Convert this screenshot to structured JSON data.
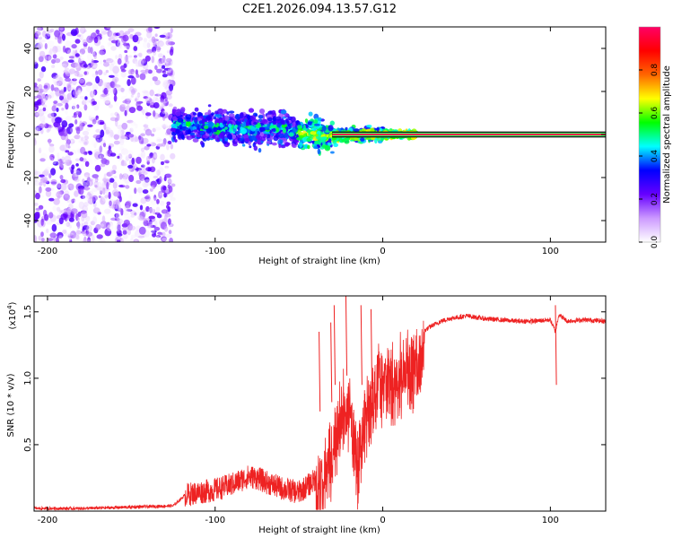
{
  "title": "C2E1.2026.094.13.57.G12",
  "chart_data": [
    {
      "type": "heatmap",
      "name": "spectrogram",
      "xlabel": "Height of straight line (km)",
      "ylabel": "Frequency (Hz)",
      "xlim": [
        -208,
        133
      ],
      "ylim": [
        -50,
        50
      ],
      "x_ticks": [
        -200,
        -100,
        0,
        100
      ],
      "x_tick_labels": [
        "-200",
        "-100",
        "0",
        "100"
      ],
      "y_ticks": [
        -40,
        -20,
        0,
        20,
        40
      ],
      "y_tick_labels": [
        "-40",
        "-20",
        "0",
        "20",
        "40"
      ],
      "noise_region_x": [
        -208,
        -125
      ],
      "signal_trend": [
        {
          "x": -125,
          "f": 5
        },
        {
          "x": -100,
          "f": 3
        },
        {
          "x": -80,
          "f": 2
        },
        {
          "x": -60,
          "f": 3
        },
        {
          "x": -45,
          "f": 0
        },
        {
          "x": -30,
          "f": -1
        },
        {
          "x": -10,
          "f": 0
        },
        {
          "x": 0,
          "f": 0
        },
        {
          "x": 20,
          "f": 0
        },
        {
          "x": 133,
          "f": 0
        }
      ],
      "carrier_line": {
        "x_start": -30,
        "x_end": 133,
        "frequency": 0
      },
      "colorbar": {
        "label": "Normalized spectral amplitude",
        "range": [
          0,
          1
        ],
        "ticks": [
          0.0,
          0.2,
          0.4,
          0.6,
          0.8
        ],
        "tick_labels": [
          "0.0",
          "0.2",
          "0.4",
          "0.6",
          "0.8"
        ],
        "colormap": [
          "#ffffff",
          "#cc99ff",
          "#6600ff",
          "#0000ff",
          "#00ffff",
          "#00ff00",
          "#ffff00",
          "#ff6600",
          "#ff0000",
          "#ff0066"
        ]
      }
    },
    {
      "type": "line",
      "name": "snr",
      "xlabel": "Height of straight line (km)",
      "ylabel": "SNR (10 * v/v)",
      "scale_label": "(x10",
      "scale_exponent": "4",
      "scale_close": ")",
      "xlim": [
        -208,
        133
      ],
      "ylim": [
        0,
        1.62
      ],
      "x_ticks": [
        -200,
        -100,
        0,
        100
      ],
      "x_tick_labels": [
        "-200",
        "-100",
        "0",
        "100"
      ],
      "y_ticks": [
        0.5,
        1.0,
        1.5
      ],
      "y_tick_labels": [
        "0.5",
        "1.0",
        "1.5"
      ],
      "color": "#ee2222",
      "series": [
        {
          "name": "SNR",
          "x": [
            -208,
            -180,
            -150,
            -125,
            -118,
            -110,
            -100,
            -90,
            -80,
            -75,
            -70,
            -60,
            -50,
            -40,
            -35,
            -30,
            -25,
            -20,
            -15,
            -10,
            -5,
            0,
            5,
            10,
            15,
            20,
            25,
            30,
            35,
            40,
            45,
            50,
            60,
            70,
            80,
            90,
            100,
            103,
            105,
            110,
            120,
            133
          ],
          "y": [
            0.02,
            0.02,
            0.03,
            0.04,
            0.12,
            0.14,
            0.16,
            0.2,
            0.26,
            0.25,
            0.22,
            0.17,
            0.14,
            0.24,
            0.36,
            0.65,
            0.85,
            0.98,
            0.45,
            0.9,
            1.05,
            1.1,
            1.12,
            1.18,
            1.24,
            1.3,
            1.36,
            1.4,
            1.43,
            1.45,
            1.46,
            1.47,
            1.45,
            1.44,
            1.43,
            1.43,
            1.44,
            1.35,
            1.48,
            1.43,
            1.44,
            1.43
          ]
        }
      ],
      "spikes": [
        {
          "x": -38,
          "y": 1.35
        },
        {
          "x": -31,
          "y": 1.42
        },
        {
          "x": -29,
          "y": 1.55
        },
        {
          "x": -22,
          "y": 1.62
        },
        {
          "x": -13,
          "y": 1.55
        },
        {
          "x": -7,
          "y": 1.52
        },
        {
          "x": 103,
          "y": 1.55
        }
      ]
    }
  ]
}
